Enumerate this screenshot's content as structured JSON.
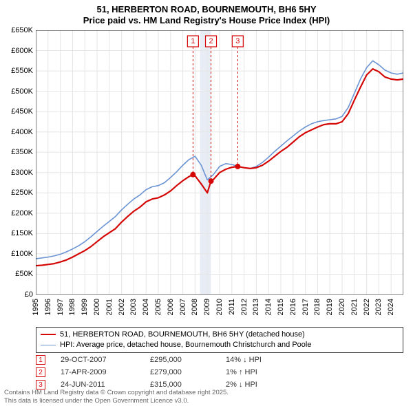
{
  "title_line1": "51, HERBERTON ROAD, BOURNEMOUTH, BH6 5HY",
  "title_line2": "Price paid vs. HM Land Registry's House Price Index (HPI)",
  "chart": {
    "type": "line",
    "background_color": "#ffffff",
    "grid_color": "#e5e5e5",
    "axis_color": "#000000",
    "x_years": [
      1995,
      1996,
      1997,
      1998,
      1999,
      2000,
      2001,
      2002,
      2003,
      2004,
      2005,
      2006,
      2007,
      2008,
      2009,
      2010,
      2011,
      2012,
      2013,
      2014,
      2015,
      2016,
      2017,
      2018,
      2019,
      2020,
      2021,
      2022,
      2023,
      2024
    ],
    "x_min": 1995,
    "x_max": 2025,
    "y_min": 0,
    "y_max": 650000,
    "y_tick_step": 50000,
    "y_tick_labels": [
      "£0",
      "£50K",
      "£100K",
      "£150K",
      "£200K",
      "£250K",
      "£300K",
      "£350K",
      "£400K",
      "£450K",
      "£500K",
      "£550K",
      "£600K",
      "£650K"
    ],
    "title_fontsize": 13,
    "tick_fontsize": 11,
    "series": [
      {
        "name": "price_paid",
        "label": "51, HERBERTON ROAD, BOURNEMOUTH, BH6 5HY (detached house)",
        "color": "#d40606",
        "line_width": 2.2,
        "x": [
          1995.0,
          1995.5,
          1996.0,
          1996.5,
          1997.0,
          1997.5,
          1998.0,
          1998.5,
          1999.0,
          1999.5,
          2000.0,
          2000.5,
          2001.0,
          2001.5,
          2002.0,
          2002.5,
          2003.0,
          2003.5,
          2004.0,
          2004.5,
          2005.0,
          2005.5,
          2006.0,
          2006.5,
          2007.0,
          2007.5,
          2007.83,
          2008.0,
          2008.5,
          2009.0,
          2009.3,
          2009.5,
          2010.0,
          2010.5,
          2011.0,
          2011.48,
          2011.5,
          2012.0,
          2012.5,
          2013.0,
          2013.5,
          2014.0,
          2014.5,
          2015.0,
          2015.5,
          2016.0,
          2016.5,
          2017.0,
          2017.5,
          2018.0,
          2018.5,
          2019.0,
          2019.5,
          2020.0,
          2020.5,
          2021.0,
          2021.5,
          2022.0,
          2022.5,
          2023.0,
          2023.5,
          2024.0,
          2024.5,
          2025.0
        ],
        "y": [
          71000,
          72000,
          74000,
          76000,
          80000,
          85000,
          92000,
          100000,
          108000,
          118000,
          130000,
          142000,
          152000,
          162000,
          178000,
          192000,
          205000,
          215000,
          228000,
          235000,
          238000,
          245000,
          255000,
          268000,
          280000,
          290000,
          295000,
          292000,
          272000,
          250000,
          279000,
          283000,
          300000,
          308000,
          313000,
          315000,
          315000,
          312000,
          310000,
          312000,
          318000,
          328000,
          340000,
          352000,
          362000,
          375000,
          388000,
          398000,
          405000,
          412000,
          418000,
          420000,
          420000,
          425000,
          445000,
          478000,
          510000,
          540000,
          555000,
          548000,
          535000,
          530000,
          528000,
          530000
        ]
      },
      {
        "name": "hpi",
        "label": "HPI: Average price, detached house, Bournemouth Christchurch and Poole",
        "color": "#6a93d4",
        "line_width": 1.6,
        "x": [
          1995.0,
          1995.5,
          1996.0,
          1996.5,
          1997.0,
          1997.5,
          1998.0,
          1998.5,
          1999.0,
          1999.5,
          2000.0,
          2000.5,
          2001.0,
          2001.5,
          2002.0,
          2002.5,
          2003.0,
          2003.5,
          2004.0,
          2004.5,
          2005.0,
          2005.5,
          2006.0,
          2006.5,
          2007.0,
          2007.5,
          2008.0,
          2008.5,
          2009.0,
          2009.5,
          2010.0,
          2010.5,
          2011.0,
          2011.5,
          2012.0,
          2012.5,
          2013.0,
          2013.5,
          2014.0,
          2014.5,
          2015.0,
          2015.5,
          2016.0,
          2016.5,
          2017.0,
          2017.5,
          2018.0,
          2018.5,
          2019.0,
          2019.5,
          2020.0,
          2020.5,
          2021.0,
          2021.5,
          2022.0,
          2022.5,
          2023.0,
          2023.5,
          2024.0,
          2024.5,
          2025.0
        ],
        "y": [
          88000,
          90000,
          92000,
          95000,
          99000,
          105000,
          112000,
          120000,
          130000,
          142000,
          155000,
          168000,
          180000,
          192000,
          208000,
          222000,
          235000,
          245000,
          258000,
          265000,
          268000,
          275000,
          288000,
          302000,
          318000,
          332000,
          340000,
          318000,
          282000,
          295000,
          315000,
          322000,
          320000,
          315000,
          312000,
          310000,
          315000,
          325000,
          338000,
          352000,
          365000,
          378000,
          390000,
          402000,
          412000,
          420000,
          425000,
          428000,
          430000,
          432000,
          438000,
          460000,
          495000,
          530000,
          558000,
          575000,
          565000,
          552000,
          545000,
          542000,
          545000
        ]
      }
    ],
    "shaded_band": {
      "x_start": 2008.4,
      "x_end": 2009.3,
      "color": "#e8edf5"
    },
    "sale_markers": [
      {
        "num": "1",
        "x": 2007.83,
        "y": 295000,
        "color": "#d40606"
      },
      {
        "num": "2",
        "x": 2009.3,
        "y": 279000,
        "color": "#d40606"
      },
      {
        "num": "3",
        "x": 2011.48,
        "y": 315000,
        "color": "#d40606"
      }
    ],
    "marker_box_y_top": 8,
    "marker_dot_radius": 4
  },
  "legend": {
    "border_color": "#333333",
    "fontsize": 11
  },
  "sales": [
    {
      "num": "1",
      "date": "29-OCT-2007",
      "price": "£295,000",
      "hpi_diff": "14% ↓ HPI",
      "color": "#d40606"
    },
    {
      "num": "2",
      "date": "17-APR-2009",
      "price": "£279,000",
      "hpi_diff": "1% ↑ HPI",
      "color": "#d40606"
    },
    {
      "num": "3",
      "date": "24-JUN-2011",
      "price": "£315,000",
      "hpi_diff": "2% ↓ HPI",
      "color": "#d40606"
    }
  ],
  "footer_line1": "Contains HM Land Registry data © Crown copyright and database right 2025.",
  "footer_line2": "This data is licensed under the Open Government Licence v3.0."
}
